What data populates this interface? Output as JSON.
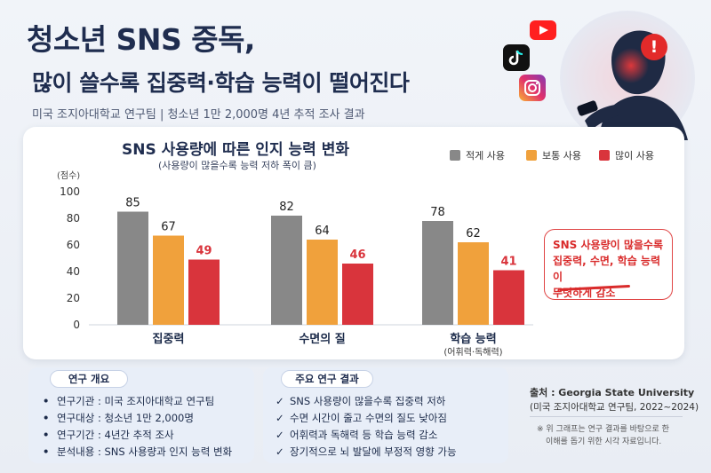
{
  "header": {
    "title_line1": "청소년 SNS 중독,",
    "title_line2": "많이 쓸수록 집중력·학습 능력이 떨어진다",
    "subtitle": "미국 조지아대학교 연구팀 | 청소년 1만 2,000명 4년 추적 조사 결과"
  },
  "colors": {
    "low": "#888888",
    "mid": "#f0a13c",
    "high": "#d9343c",
    "accent": "#d92b2b",
    "navy": "#1f2d4f"
  },
  "icons": [
    "youtube-icon",
    "tiktok-icon",
    "instagram-icon",
    "alert-icon"
  ],
  "chart_data": {
    "type": "bar",
    "title": "SNS 사용량에 따른 인지 능력 변화",
    "subtitle": "(사용량이 많을수록 능력 저하 폭이 큼)",
    "ylabel": "(점수)",
    "ylim": [
      0,
      100
    ],
    "yticks": [
      0,
      20,
      40,
      60,
      80,
      100
    ],
    "categories": [
      "집중력",
      "수면의 질",
      "학습 능력"
    ],
    "category_notes": [
      "",
      "",
      "(어휘력·독해력)"
    ],
    "series": [
      {
        "name": "적게 사용",
        "values": [
          85,
          82,
          78
        ]
      },
      {
        "name": "보통 사용",
        "values": [
          67,
          64,
          62
        ]
      },
      {
        "name": "많이 사용",
        "values": [
          49,
          46,
          41
        ]
      }
    ],
    "legend_position": "top-right",
    "grid": false
  },
  "callout": {
    "line1": "SNS 사용량이 많을수록",
    "line2": "집중력, 수면, 학습 능력이",
    "line3": "뚜렷하게 감소"
  },
  "overview": {
    "tag": "연구 개요",
    "items": [
      "연구기관 : 미국 조지아대학교 연구팀",
      "연구대상 : 청소년 1만 2,000명",
      "연구기간 : 4년간 추적 조사",
      "분석내용 : SNS 사용량과 인지 능력 변화"
    ]
  },
  "findings": {
    "tag": "주요 연구 결과",
    "items": [
      "SNS 사용량이 많을수록 집중력 저하",
      "수면 시간이 줄고 수면의 질도 낮아짐",
      "어휘력과 독해력 등 학습 능력 감소",
      "장기적으로 뇌 발달에 부정적 영향 가능"
    ]
  },
  "source": {
    "line1": "출처 : Georgia State University",
    "line2": "(미국 조지아대학교 연구팀, 2022~2024)",
    "note1": "※ 위 그래프는 연구 결과를 바탕으로 한",
    "note2": "이해를 돕기 위한 시각 자료입니다."
  }
}
